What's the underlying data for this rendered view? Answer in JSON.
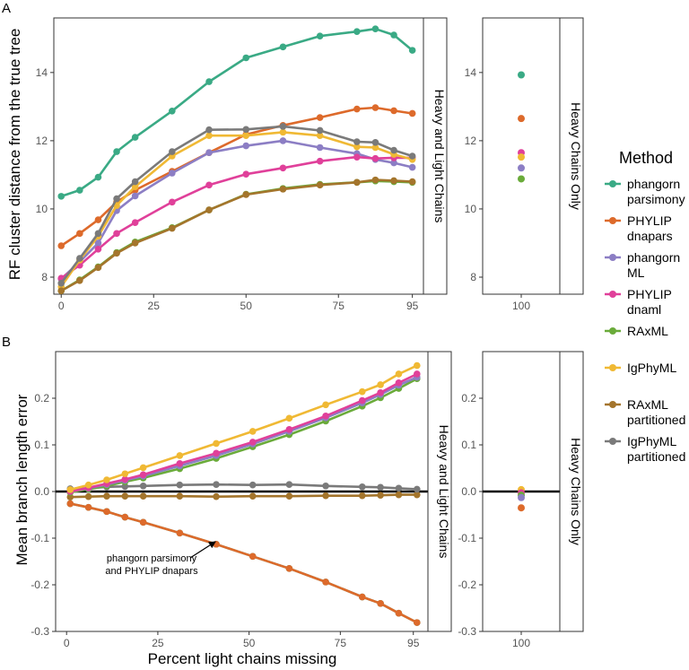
{
  "colors": {
    "phangorn_parsimony": "#3aaa85",
    "phylip_dnapars": "#dd6a2b",
    "phangorn_ml": "#8c7ec4",
    "phylip_dnaml": "#e0409a",
    "raxml": "#6aab3a",
    "igphyml": "#f0b934",
    "raxml_partitioned": "#a4752c",
    "igphyml_partitioned": "#7a7a7a"
  },
  "legend": {
    "title": "Method",
    "entries": [
      {
        "key": "phangorn_parsimony",
        "line1": "phangorn",
        "line2": "parsimony"
      },
      {
        "key": "phylip_dnapars",
        "line1": "PHYLIP",
        "line2": "dnapars"
      },
      {
        "key": "phangorn_ml",
        "line1": "phangorn",
        "line2": "ML"
      },
      {
        "key": "phylip_dnaml",
        "line1": "PHYLIP",
        "line2": "dnaml"
      },
      {
        "key": "raxml",
        "line1": "RAxML",
        "line2": ""
      },
      {
        "key": "igphyml",
        "line1": "IgPhyML",
        "line2": ""
      },
      {
        "key": "raxml_partitioned",
        "line1": "RAxML",
        "line2": "partitioned"
      },
      {
        "key": "igphyml_partitioned",
        "line1": "IgPhyML",
        "line2": "partitioned"
      }
    ]
  },
  "chart_data": [
    {
      "panel": "A",
      "type": "line",
      "ylabel": "RF cluster distance from the true tree",
      "xlim": [
        -2,
        98
      ],
      "ylim": [
        7.5,
        15.6
      ],
      "xticks": [
        0,
        25,
        50,
        75,
        95
      ],
      "yticks": [
        8,
        10,
        12,
        14
      ],
      "facet_label": "Heavy and Light Chains",
      "x": [
        0,
        5,
        10,
        15,
        20,
        30,
        40,
        50,
        60,
        70,
        80,
        85,
        90,
        95
      ],
      "series": [
        {
          "key": "phangorn_parsimony",
          "name": "phangorn parsimony",
          "values": [
            10.37,
            10.55,
            10.93,
            11.68,
            12.1,
            12.87,
            13.73,
            14.43,
            14.75,
            15.07,
            15.2,
            15.28,
            15.1,
            14.65
          ]
        },
        {
          "key": "phylip_dnapars",
          "name": "PHYLIP dnapars",
          "values": [
            8.92,
            9.28,
            9.68,
            10.2,
            10.55,
            11.1,
            11.65,
            12.18,
            12.45,
            12.68,
            12.93,
            12.97,
            12.88,
            12.8
          ]
        },
        {
          "key": "phangorn_ml",
          "name": "phangorn ML",
          "values": [
            7.95,
            8.45,
            9.0,
            9.95,
            10.38,
            11.05,
            11.65,
            11.85,
            12.0,
            11.8,
            11.62,
            11.45,
            11.35,
            11.22
          ]
        },
        {
          "key": "phylip_dnaml",
          "name": "PHYLIP dnaml",
          "values": [
            7.97,
            8.35,
            8.82,
            9.28,
            9.6,
            10.2,
            10.7,
            11.02,
            11.2,
            11.4,
            11.52,
            11.48,
            11.5,
            11.5
          ]
        },
        {
          "key": "raxml",
          "name": "RAxML",
          "values": [
            7.6,
            7.92,
            8.3,
            8.72,
            9.03,
            9.45,
            9.97,
            10.43,
            10.6,
            10.72,
            10.78,
            10.82,
            10.8,
            10.78
          ]
        },
        {
          "key": "igphyml",
          "name": "IgPhyML",
          "values": [
            7.72,
            8.5,
            9.2,
            10.1,
            10.65,
            11.55,
            12.15,
            12.15,
            12.25,
            12.15,
            11.82,
            11.8,
            11.6,
            11.45
          ]
        },
        {
          "key": "raxml_partitioned",
          "name": "RAxML partitioned",
          "values": [
            7.6,
            7.9,
            8.28,
            8.7,
            9.0,
            9.43,
            9.97,
            10.42,
            10.58,
            10.7,
            10.78,
            10.85,
            10.83,
            10.8
          ]
        },
        {
          "key": "igphyml_partitioned",
          "name": "IgPhyML partitioned",
          "values": [
            7.82,
            8.55,
            9.28,
            10.3,
            10.8,
            11.68,
            12.32,
            12.33,
            12.42,
            12.3,
            11.97,
            11.95,
            11.72,
            11.55
          ]
        }
      ],
      "side_facet_label": "Heavy Chains Only",
      "side_xtick": "100",
      "side_points": [
        {
          "key": "phangorn_parsimony",
          "value": 13.93
        },
        {
          "key": "phylip_dnapars",
          "value": 12.65
        },
        {
          "key": "phylip_dnaml",
          "value": 11.65
        },
        {
          "key": "igphyml",
          "value": 11.52
        },
        {
          "key": "phangorn_ml",
          "value": 11.2
        },
        {
          "key": "raxml",
          "value": 10.88
        }
      ]
    },
    {
      "panel": "B",
      "type": "line",
      "ylabel": "Mean branch length error",
      "xlabel": "Percent light chains missing",
      "xlim": [
        -3,
        99
      ],
      "ylim": [
        -0.3,
        0.3
      ],
      "xticks": [
        0,
        25,
        50,
        75,
        95
      ],
      "yticks": [
        0.2,
        0.1,
        0.0,
        -0.1,
        -0.2,
        -0.3
      ],
      "ytick_labels": [
        "0.2",
        "0.1",
        "0.0",
        "-0.1",
        "-0.2",
        "-0.3"
      ],
      "facet_label": "Heavy and Light Chains",
      "zero_line": true,
      "x": [
        1,
        6,
        11,
        16,
        21,
        31,
        41,
        51,
        61,
        71,
        81,
        86,
        91,
        96
      ],
      "series": [
        {
          "key": "phangorn_parsimony",
          "name": "phangorn parsimony",
          "values": [
            -0.026,
            -0.034,
            -0.043,
            -0.055,
            -0.066,
            -0.089,
            -0.113,
            -0.139,
            -0.165,
            -0.194,
            -0.226,
            -0.24,
            -0.261,
            -0.281
          ]
        },
        {
          "key": "phylip_dnapars",
          "name": "PHYLIP dnapars",
          "values": [
            -0.026,
            -0.034,
            -0.043,
            -0.055,
            -0.066,
            -0.089,
            -0.113,
            -0.139,
            -0.165,
            -0.194,
            -0.226,
            -0.24,
            -0.261,
            -0.281
          ]
        },
        {
          "key": "raxml_partitioned",
          "name": "RAxML partitioned",
          "values": [
            -0.012,
            -0.011,
            -0.01,
            -0.01,
            -0.01,
            -0.01,
            -0.011,
            -0.01,
            -0.01,
            -0.009,
            -0.009,
            -0.008,
            -0.007,
            -0.007
          ]
        },
        {
          "key": "igphyml_partitioned",
          "name": "IgPhyML partitioned",
          "values": [
            0.006,
            0.007,
            0.01,
            0.011,
            0.012,
            0.014,
            0.015,
            0.014,
            0.015,
            0.012,
            0.01,
            0.009,
            0.007,
            0.005
          ]
        },
        {
          "key": "raxml",
          "name": "RAxML",
          "values": [
            -0.002,
            0.005,
            0.012,
            0.021,
            0.029,
            0.049,
            0.071,
            0.096,
            0.122,
            0.151,
            0.183,
            0.201,
            0.221,
            0.242
          ]
        },
        {
          "key": "phangorn_ml",
          "name": "phangorn ML",
          "values": [
            0.0,
            0.007,
            0.015,
            0.024,
            0.033,
            0.055,
            0.077,
            0.102,
            0.129,
            0.158,
            0.19,
            0.208,
            0.228,
            0.245
          ]
        },
        {
          "key": "phylip_dnaml",
          "name": "PHYLIP dnaml",
          "values": [
            0.0,
            0.008,
            0.017,
            0.026,
            0.036,
            0.06,
            0.082,
            0.106,
            0.133,
            0.162,
            0.195,
            0.212,
            0.233,
            0.252
          ]
        },
        {
          "key": "igphyml",
          "name": "IgPhyML",
          "values": [
            0.004,
            0.014,
            0.025,
            0.038,
            0.051,
            0.077,
            0.103,
            0.129,
            0.157,
            0.186,
            0.214,
            0.229,
            0.252,
            0.27
          ]
        }
      ],
      "annotation": {
        "line1": "phangorn parsimony",
        "line2": "and PHYLIP dnapars"
      },
      "side_facet_label": "Heavy Chains Only",
      "side_xtick": "100",
      "side_points": [
        {
          "key": "igphyml",
          "value": 0.004
        },
        {
          "key": "phylip_dnaml",
          "value": -0.003
        },
        {
          "key": "raxml",
          "value": -0.008
        },
        {
          "key": "phangorn_ml",
          "value": -0.013
        },
        {
          "key": "phylip_dnapars",
          "value": -0.035
        }
      ]
    }
  ],
  "panel_labels": {
    "a": "A",
    "b": "B"
  }
}
